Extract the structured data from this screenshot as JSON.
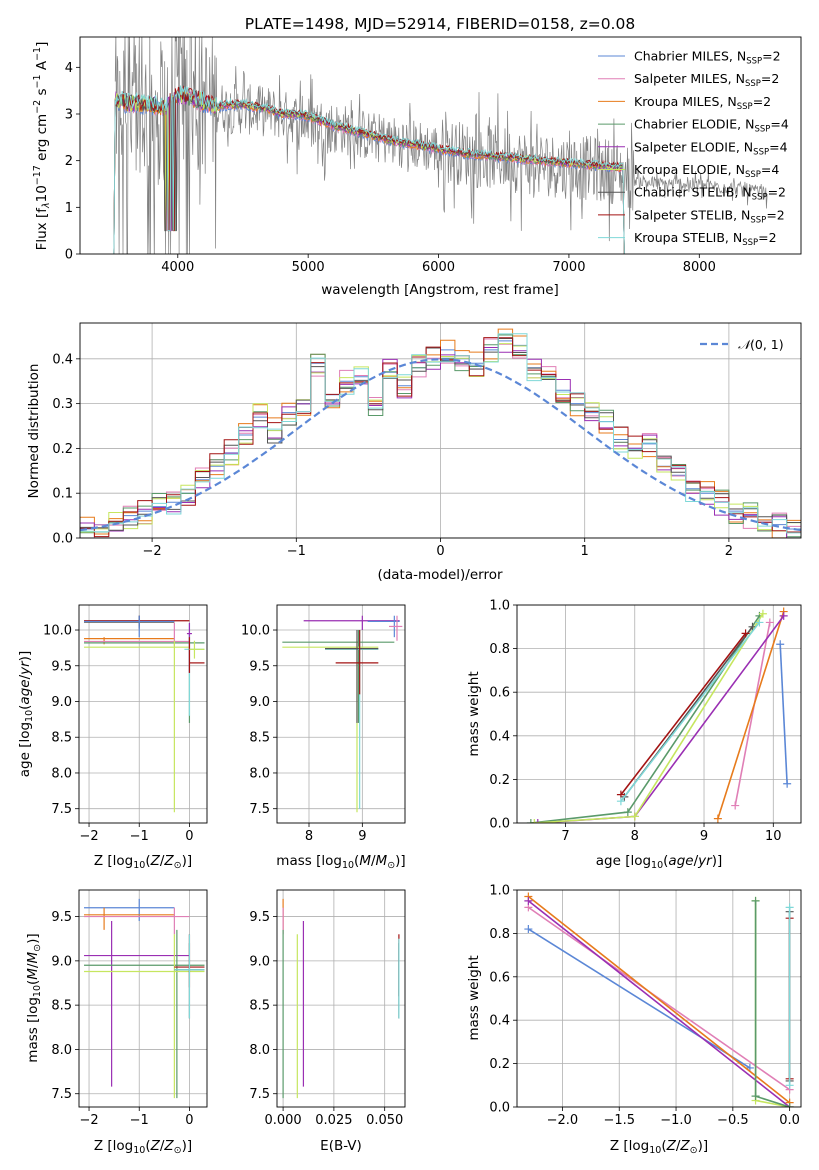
{
  "figure": {
    "title": "PLATE=1498, MJD=52914, FIBERID=0158, z=0.08"
  },
  "colors": {
    "Chabrier MILES": "#5b87d6",
    "Salpeter MILES": "#e07fb6",
    "Kroupa MILES": "#e77b1c",
    "Chabrier ELODIE": "#5a9a6a",
    "Salpeter ELODIE": "#9a2fb3",
    "Kroupa ELODIE": "#c6e65f",
    "Chabrier STELIB": "#555555",
    "Salpeter STELIB": "#a31313",
    "Kroupa STELIB": "#7fd8d8",
    "data": "#808080",
    "normal": "#5b87d6"
  },
  "chart_data": [
    {
      "type": "line",
      "panel": "spectrum",
      "xlabel": "wavelength [Angstrom, rest frame]",
      "ylabel": {
        "main": "Flux [f",
        "sub_lambda": "λ",
        "factor": "10",
        "exp1": "−17",
        "unit": " erg cm",
        "exp2": "−2",
        "unit2": " s",
        "exp3": "−1",
        "unit3": " A",
        "exp4": "−1",
        "end": "]"
      },
      "xlim": [
        3250,
        8780
      ],
      "ylim": [
        0,
        4.65
      ],
      "xticks": [
        4000,
        5000,
        6000,
        7000,
        8000
      ],
      "yticks": [
        0,
        1,
        2,
        3,
        4
      ],
      "legend_position": "top-right",
      "legend": [
        {
          "label": "Chabrier MILES, N",
          "sub": "SSP",
          "suffix": "=2"
        },
        {
          "label": "Salpeter MILES, N",
          "sub": "SSP",
          "suffix": "=2"
        },
        {
          "label": "Kroupa MILES, N",
          "sub": "SSP",
          "suffix": "=2"
        },
        {
          "label": "Chabrier ELODIE, N",
          "sub": "SSP",
          "suffix": "=4"
        },
        {
          "label": "Salpeter ELODIE, N",
          "sub": "SSP",
          "suffix": "=4"
        },
        {
          "label": "Kroupa ELODIE, N",
          "sub": "SSP",
          "suffix": "=4"
        },
        {
          "label": "Chabrier STELIB, N",
          "sub": "SSP",
          "suffix": "=2"
        },
        {
          "label": "Salpeter STELIB, N",
          "sub": "SSP",
          "suffix": "=2"
        },
        {
          "label": "Kroupa STELIB, N",
          "sub": "SSP",
          "suffix": "=2"
        }
      ],
      "model_continuum": {
        "x": [
          3520,
          3600,
          3700,
          3800,
          3900,
          4000,
          4100,
          4200,
          4300,
          4400,
          4500,
          4600,
          4700,
          4800,
          4900,
          5000,
          5200,
          5400,
          5600,
          5800,
          6000,
          6200,
          6400,
          6600,
          6800,
          7000,
          7200,
          7400
        ],
        "y": [
          3.3,
          3.25,
          3.2,
          3.2,
          3.15,
          3.4,
          3.35,
          3.25,
          3.15,
          3.2,
          3.2,
          3.15,
          3.1,
          3.0,
          3.0,
          2.95,
          2.75,
          2.6,
          2.45,
          2.35,
          2.25,
          2.15,
          2.1,
          2.05,
          2.0,
          1.95,
          1.9,
          1.85
        ]
      },
      "data_continuum": {
        "x": [
          3520,
          3700,
          3900,
          4100,
          4300,
          4500,
          4700,
          4900,
          5100,
          5300,
          5500,
          5700,
          5900,
          6100,
          6300,
          6500,
          6700,
          6900,
          7100,
          7300,
          7500,
          7700,
          7900,
          8100,
          8300,
          8500
        ],
        "y": [
          3.2,
          3.1,
          3.1,
          3.3,
          3.15,
          3.1,
          3.05,
          2.9,
          2.8,
          2.65,
          2.5,
          2.4,
          2.3,
          2.2,
          2.1,
          2.05,
          1.95,
          1.9,
          1.85,
          1.8,
          1.6,
          1.5,
          1.5,
          1.45,
          1.4,
          1.3
        ]
      }
    },
    {
      "type": "line",
      "panel": "residual histogram",
      "xlabel": "(data-model)/error",
      "ylabel": "Normed distribution",
      "xlim": [
        -2.5,
        2.5
      ],
      "ylim": [
        0,
        0.48
      ],
      "xticks": [
        -2,
        -1,
        0,
        1,
        2
      ],
      "yticks": [
        0.0,
        0.1,
        0.2,
        0.3,
        0.4
      ],
      "grid": true,
      "legend_position": "top-right",
      "normal_label": "N(0,1)",
      "bin_edges_start": -2.5,
      "bin_width": 0.1,
      "hist_chabrier_miles": [
        0.02,
        0.03,
        0.035,
        0.05,
        0.06,
        0.07,
        0.08,
        0.1,
        0.13,
        0.16,
        0.19,
        0.23,
        0.27,
        0.24,
        0.28,
        0.3,
        0.39,
        0.32,
        0.35,
        0.36,
        0.3,
        0.37,
        0.34,
        0.38,
        0.4,
        0.42,
        0.4,
        0.39,
        0.42,
        0.44,
        0.43,
        0.38,
        0.36,
        0.33,
        0.3,
        0.28,
        0.26,
        0.22,
        0.2,
        0.21,
        0.16,
        0.14,
        0.11,
        0.1,
        0.08,
        0.06,
        0.05,
        0.04,
        0.03,
        0.02
      ]
    },
    {
      "type": "scatter",
      "panel": "age vs Z",
      "xlabel": "Z [log10(Z/Z_sun)]",
      "ylabel": "age [log10(age/yr)]",
      "xlim": [
        -2.2,
        0.35
      ],
      "ylim": [
        7.3,
        10.35
      ],
      "xticks": [
        -2,
        -1,
        0
      ],
      "yticks": [
        7.5,
        8.0,
        8.5,
        9.0,
        9.5,
        10.0
      ]
    },
    {
      "type": "scatter",
      "panel": "age vs mass",
      "xlabel": "mass [log10(M/M_sun)]",
      "xlim": [
        7.4,
        9.8
      ],
      "ylim": [
        7.3,
        10.35
      ],
      "xticks": [
        8,
        9
      ],
      "yticks": [
        7.5,
        8.0,
        8.5,
        9.0,
        9.5,
        10.0
      ]
    },
    {
      "type": "line",
      "panel": "mass weight vs age",
      "xlabel": "age [log10(age/yr)]",
      "ylabel": "mass weight",
      "xlim": [
        6.3,
        10.4
      ],
      "ylim": [
        0,
        1.0
      ],
      "xticks": [
        7,
        8,
        9,
        10
      ],
      "yticks": [
        0.0,
        0.2,
        0.4,
        0.6,
        0.8,
        1.0
      ],
      "series": [
        {
          "name": "Chabrier MILES",
          "x": [
            10.2,
            10.1
          ],
          "y": [
            0.18,
            0.82
          ]
        },
        {
          "name": "Salpeter MILES",
          "x": [
            9.45,
            9.95
          ],
          "y": [
            0.08,
            0.92
          ]
        },
        {
          "name": "Kroupa MILES",
          "x": [
            9.2,
            10.15
          ],
          "y": [
            0.02,
            0.97
          ]
        },
        {
          "name": "Chabrier ELODIE",
          "x": [
            6.5,
            7.9,
            9.8
          ],
          "y": [
            0.0,
            0.05,
            0.95
          ]
        },
        {
          "name": "Salpeter ELODIE",
          "x": [
            6.6,
            8.0,
            10.15
          ],
          "y": [
            0.0,
            0.03,
            0.95
          ]
        },
        {
          "name": "Kroupa ELODIE",
          "x": [
            6.55,
            8.0,
            9.85
          ],
          "y": [
            0.0,
            0.03,
            0.96
          ]
        },
        {
          "name": "Chabrier STELIB",
          "x": [
            7.85,
            9.7
          ],
          "y": [
            0.12,
            0.9
          ]
        },
        {
          "name": "Salpeter STELIB",
          "x": [
            7.8,
            9.6
          ],
          "y": [
            0.13,
            0.87
          ]
        },
        {
          "name": "Kroupa STELIB",
          "x": [
            7.8,
            9.8
          ],
          "y": [
            0.1,
            0.92
          ]
        }
      ]
    },
    {
      "type": "scatter",
      "panel": "mass vs Z",
      "xlabel": "Z [log10(Z/Z_sun)]",
      "ylabel": "mass [log10(M/M_sun)]",
      "xlim": [
        -2.2,
        0.35
      ],
      "ylim": [
        7.35,
        9.8
      ],
      "xticks": [
        -2,
        -1,
        0
      ],
      "yticks": [
        7.5,
        8.0,
        8.5,
        9.0,
        9.5
      ]
    },
    {
      "type": "scatter",
      "panel": "mass vs E(B-V)",
      "xlabel": "E(B-V)",
      "xlim": [
        -0.003,
        0.06
      ],
      "ylim": [
        7.35,
        9.8
      ],
      "xticks": [
        0.0,
        0.025,
        0.05
      ],
      "xticklabels": [
        "0.000",
        "0.025",
        "0.050"
      ],
      "yticks": [
        7.5,
        8.0,
        8.5,
        9.0,
        9.5
      ]
    },
    {
      "type": "line",
      "panel": "mass weight vs Z",
      "xlabel": "Z [log10(Z/Z_sun)]",
      "ylabel": "mass weight",
      "xlim": [
        -2.4,
        0.1
      ],
      "ylim": [
        0,
        1.0
      ],
      "xticks": [
        -2.0,
        -1.5,
        -1.0,
        -0.5,
        0.0
      ],
      "xticklabels": [
        "−2.0",
        "−1.5",
        "−1.0",
        "−0.5",
        "0.0"
      ],
      "yticks": [
        0.0,
        0.2,
        0.4,
        0.6,
        0.8,
        1.0
      ],
      "series": [
        {
          "name": "Chabrier MILES",
          "x": [
            -2.3,
            -0.35
          ],
          "y": [
            0.82,
            0.18
          ]
        },
        {
          "name": "Salpeter MILES",
          "x": [
            -2.3,
            0.0
          ],
          "y": [
            0.92,
            0.08
          ]
        },
        {
          "name": "Kroupa MILES",
          "x": [
            -2.3,
            0.0
          ],
          "y": [
            0.97,
            0.02
          ]
        },
        {
          "name": "Salpeter ELODIE",
          "x": [
            -2.3,
            0.0
          ],
          "y": [
            0.95,
            0.0
          ]
        },
        {
          "name": "Kroupa ELODIE",
          "x": [
            -0.3,
            -0.3,
            0.0
          ],
          "y": [
            0.95,
            0.03,
            0.0
          ]
        },
        {
          "name": "Chabrier ELODIE",
          "x": [
            -0.3,
            -0.3,
            0.0
          ],
          "y": [
            0.95,
            0.05,
            0.0
          ]
        },
        {
          "name": "Chabrier STELIB",
          "x": [
            0.0,
            0.0
          ],
          "y": [
            0.9,
            0.12
          ]
        },
        {
          "name": "Salpeter STELIB",
          "x": [
            0.0,
            0.0
          ],
          "y": [
            0.87,
            0.13
          ]
        },
        {
          "name": "Kroupa STELIB",
          "x": [
            0.0,
            0.0
          ],
          "y": [
            0.92,
            0.1
          ]
        }
      ]
    }
  ]
}
